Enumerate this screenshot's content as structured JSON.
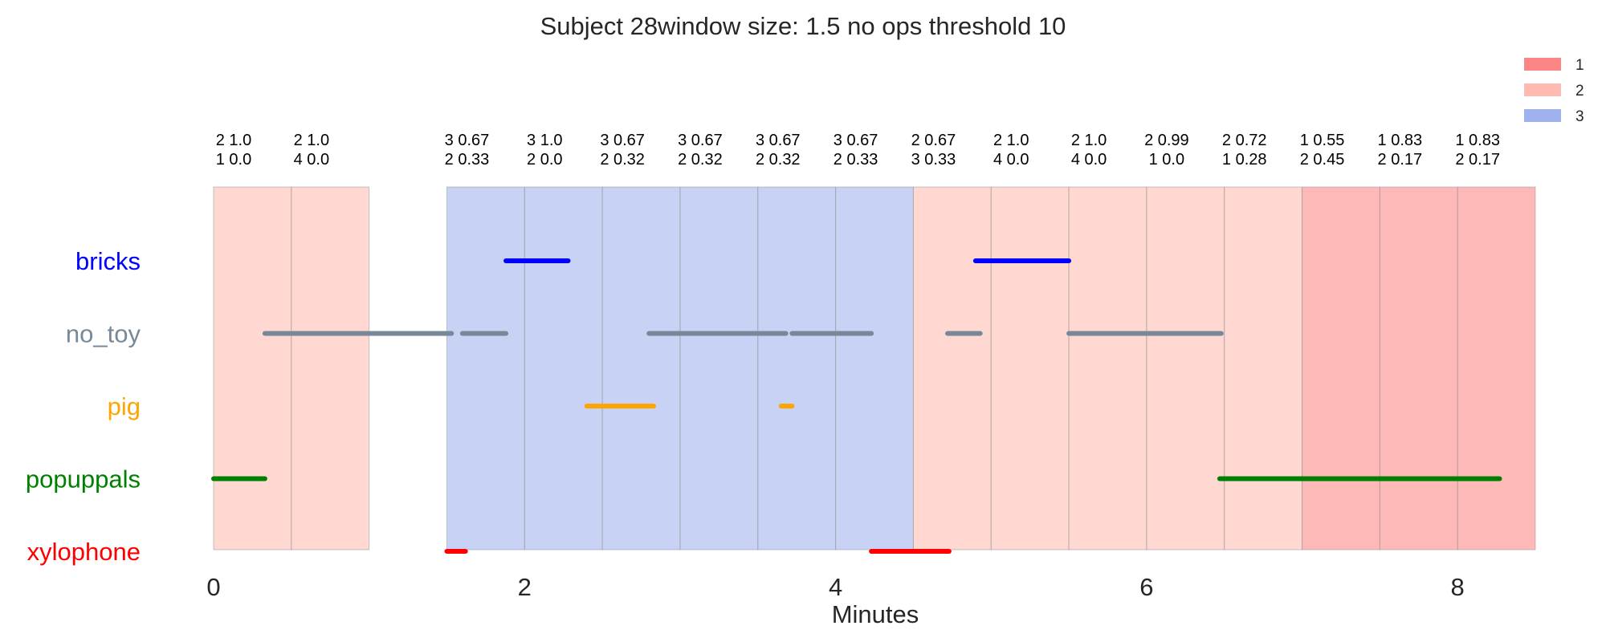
{
  "chart_data": {
    "type": "timeline",
    "title": "Subject 28window size: 1.5 no ops threshold 10",
    "xlabel": "Minutes",
    "xlim": [
      0,
      8.5
    ],
    "xticks": [
      0,
      2,
      4,
      6,
      8
    ],
    "grid": false,
    "legend": {
      "placement": "top-right",
      "entries": [
        {
          "label": "1",
          "color": "#fc8585"
        },
        {
          "label": "2",
          "color": "#ffbbb2"
        },
        {
          "label": "3",
          "color": "#9fb2ed"
        }
      ]
    },
    "windows": [
      {
        "start": 0.0,
        "end": 0.5,
        "state": "2",
        "line1": "2 1.0",
        "line2": "1 0.0"
      },
      {
        "start": 0.5,
        "end": 1.0,
        "state": "2",
        "line1": "2 1.0",
        "line2": "4 0.0"
      },
      {
        "start": 1.5,
        "end": 2.0,
        "state": "3",
        "line1": "3 0.67",
        "line2": "2 0.33"
      },
      {
        "start": 2.0,
        "end": 2.5,
        "state": "3",
        "line1": "3 1.0",
        "line2": "2 0.0"
      },
      {
        "start": 2.5,
        "end": 3.0,
        "state": "3",
        "line1": "3 0.67",
        "line2": "2 0.32"
      },
      {
        "start": 3.0,
        "end": 3.5,
        "state": "3",
        "line1": "3 0.67",
        "line2": "2 0.32"
      },
      {
        "start": 3.5,
        "end": 4.0,
        "state": "3",
        "line1": "3 0.67",
        "line2": "2 0.32"
      },
      {
        "start": 4.0,
        "end": 4.5,
        "state": "3",
        "line1": "3 0.67",
        "line2": "2 0.33"
      },
      {
        "start": 4.5,
        "end": 5.0,
        "state": "2",
        "line1": "2 0.67",
        "line2": "3 0.33"
      },
      {
        "start": 5.0,
        "end": 5.5,
        "state": "2",
        "line1": "2 1.0",
        "line2": "4 0.0"
      },
      {
        "start": 5.5,
        "end": 6.0,
        "state": "2",
        "line1": "2 1.0",
        "line2": "4 0.0"
      },
      {
        "start": 6.0,
        "end": 6.5,
        "state": "2",
        "line1": "2 0.99",
        "line2": "1 0.0"
      },
      {
        "start": 6.5,
        "end": 7.0,
        "state": "2",
        "line1": "2 0.72",
        "line2": "1 0.28"
      },
      {
        "start": 7.0,
        "end": 7.5,
        "state": "1",
        "line1": "1 0.55",
        "line2": "2 0.45"
      },
      {
        "start": 7.5,
        "end": 8.0,
        "state": "1",
        "line1": "1 0.83",
        "line2": "2 0.17"
      },
      {
        "start": 8.0,
        "end": 8.5,
        "state": "1",
        "line1": "1 0.83",
        "line2": "2 0.17"
      }
    ],
    "rows": [
      {
        "name": "bricks",
        "color": "#0000ff",
        "segments": [
          [
            1.88,
            2.28
          ],
          [
            4.9,
            5.5
          ]
        ]
      },
      {
        "name": "no_toy",
        "color": "#778899",
        "segments": [
          [
            0.33,
            1.53
          ],
          [
            1.6,
            1.88
          ],
          [
            2.8,
            3.68
          ],
          [
            3.72,
            4.23
          ],
          [
            4.72,
            4.93
          ],
          [
            5.5,
            6.48
          ]
        ]
      },
      {
        "name": "pig",
        "color": "#ffa500",
        "segments": [
          [
            2.4,
            2.83
          ],
          [
            3.65,
            3.72
          ]
        ]
      },
      {
        "name": "popuppals",
        "color": "#008000",
        "segments": [
          [
            0.0,
            0.33
          ],
          [
            6.47,
            8.27
          ]
        ]
      },
      {
        "name": "xylophone",
        "color": "#ff0000",
        "segments": [
          [
            1.5,
            1.62
          ],
          [
            4.23,
            4.73
          ]
        ]
      }
    ]
  }
}
